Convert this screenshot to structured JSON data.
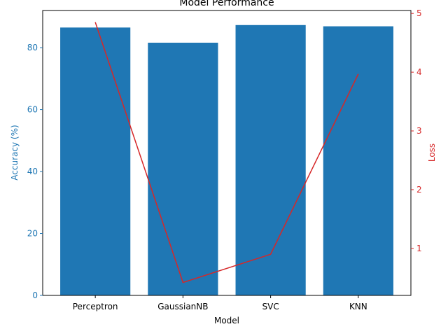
{
  "chart_data": {
    "type": "bar",
    "title": "Model Performance",
    "xlabel": "Model",
    "ylabel": "Accuracy (%)",
    "y2label": "Loss",
    "categories": [
      "Perceptron",
      "GaussianNB",
      "SVC",
      "KNN"
    ],
    "series": [
      {
        "type": "bar",
        "axis": "left",
        "color": "#1f77b4",
        "values": [
          86.5,
          81.6,
          87.3,
          86.9
        ]
      },
      {
        "type": "line",
        "axis": "right",
        "color": "#d62728",
        "values": [
          4.85,
          0.42,
          0.9,
          3.97
        ]
      }
    ],
    "ylim": [
      0,
      92
    ],
    "y2lim": [
      0.2,
      5.05
    ],
    "yticks": [
      0,
      20,
      40,
      60,
      80
    ],
    "y2ticks": [
      1,
      2,
      3,
      4,
      5
    ],
    "grid": false,
    "left_axis_color": "#1f77b4",
    "right_axis_color": "#d62728"
  }
}
